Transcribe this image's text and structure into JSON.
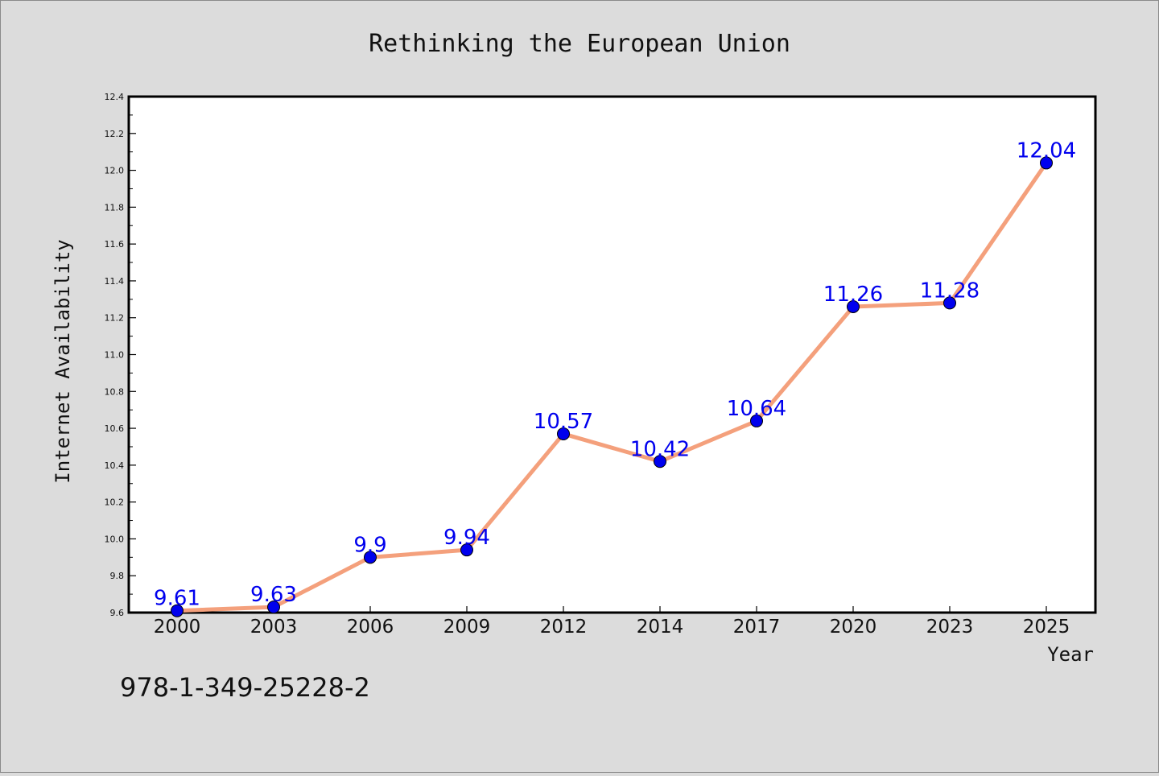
{
  "chart_data": {
    "type": "line",
    "title": "Rethinking the European Union",
    "xlabel": "Year",
    "ylabel": "Internet Availability",
    "categories": [
      "2000",
      "2003",
      "2006",
      "2009",
      "2012",
      "2014",
      "2017",
      "2020",
      "2023",
      "2025"
    ],
    "series": [
      {
        "values": [
          9.61,
          9.63,
          9.9,
          9.94,
          10.57,
          10.42,
          10.64,
          11.26,
          11.28,
          12.04
        ],
        "labels": [
          "9.61",
          "9.63",
          "9.9",
          "9.94",
          "10.57",
          "10.42",
          "10.64",
          "11.26",
          "11.28",
          "12.04"
        ]
      }
    ],
    "ylim": [
      9.6,
      12.4
    ],
    "yticks": [
      "9.6",
      "9.8",
      "10.0",
      "10.2",
      "10.4",
      "10.6",
      "10.8",
      "11.0",
      "11.2",
      "11.4",
      "11.6",
      "11.8",
      "12.0",
      "12.2",
      "12.4"
    ],
    "grid": false,
    "colors": {
      "line": "#f4a07c",
      "marker": "#0000ee",
      "label": "#0000ee",
      "background": "#dcdcdc",
      "plot_background": "#ffffff"
    }
  },
  "footer": {
    "isbn": "978-1-349-25228-2"
  }
}
